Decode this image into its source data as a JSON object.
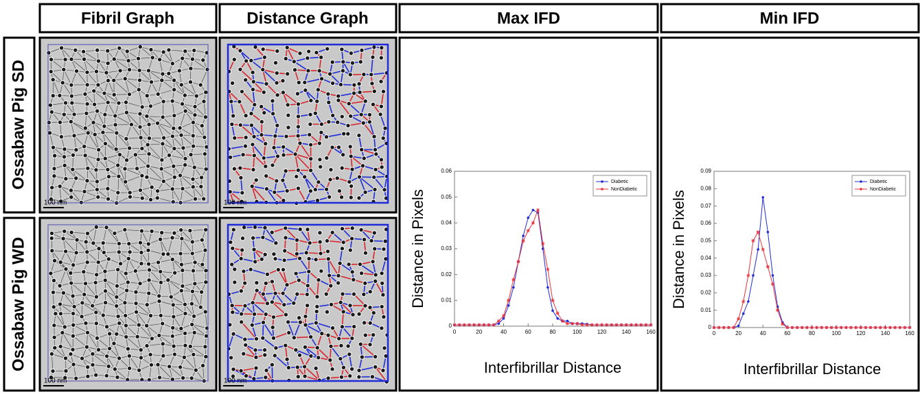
{
  "figure": {
    "column_headers": [
      "Fibril Graph",
      "Distance Graph"
    ],
    "row_labels": [
      "Ossabaw Pig SD",
      "Ossabaw Pig WD"
    ],
    "scale_bar": "100 nm"
  },
  "chart_data": [
    {
      "type": "line",
      "title": "Max IFD",
      "x_label": "Interfibrillar Distance",
      "y_label": "Distance in Pixels",
      "x": [
        0,
        4,
        8,
        12,
        16,
        20,
        24,
        28,
        32,
        36,
        40,
        44,
        48,
        52,
        56,
        60,
        64,
        68,
        72,
        76,
        80,
        84,
        88,
        92,
        96,
        100,
        104,
        108,
        112,
        116,
        120,
        124,
        128,
        132,
        136,
        140,
        144,
        148,
        152,
        156,
        160
      ],
      "series": [
        {
          "name": "Diabetic",
          "color": "#1f2bd6",
          "values": [
            0.0005,
            0.0005,
            0.0005,
            0.0005,
            0.0005,
            0.0005,
            0.0005,
            0.0005,
            0.0005,
            0.001,
            0.003,
            0.008,
            0.015,
            0.025,
            0.035,
            0.042,
            0.045,
            0.044,
            0.03,
            0.015,
            0.006,
            0.003,
            0.002,
            0.002,
            0.001,
            0.001,
            0.001,
            0.0008,
            0.0005,
            0.0005,
            0.0005,
            0.0005,
            0.0005,
            0.0005,
            0.0005,
            0.0005,
            0.0005,
            0.0005,
            0.0005,
            0.0005,
            0.0005
          ]
        },
        {
          "name": "NonDiabetic",
          "color": "#e8323a",
          "values": [
            0.0005,
            0.0005,
            0.0005,
            0.0005,
            0.0005,
            0.0005,
            0.0005,
            0.0005,
            0.0005,
            0.002,
            0.004,
            0.01,
            0.018,
            0.025,
            0.033,
            0.037,
            0.04,
            0.045,
            0.032,
            0.022,
            0.01,
            0.005,
            0.002,
            0.001,
            0.001,
            0.001,
            0.0005,
            0.0005,
            0.0005,
            0.0005,
            0.0005,
            0.0005,
            0.0005,
            0.0005,
            0.0005,
            0.0005,
            0.0005,
            0.0005,
            0.0005,
            0.0005,
            0.0005
          ]
        }
      ],
      "xlim": [
        0,
        160
      ],
      "xticks": [
        0,
        20,
        40,
        60,
        80,
        100,
        120,
        140,
        160
      ],
      "ylim": [
        0,
        0.06
      ],
      "yticks": [
        0,
        0.01,
        0.02,
        0.03,
        0.04,
        0.05,
        0.06
      ],
      "legend": "top-right"
    },
    {
      "type": "line",
      "title": "Min IFD",
      "x_label": "Interfibrillar Distance",
      "y_label": "Distance in Pixels",
      "x": [
        0,
        4,
        8,
        12,
        16,
        20,
        24,
        28,
        32,
        36,
        40,
        44,
        48,
        52,
        56,
        60,
        64,
        68,
        72,
        76,
        80,
        84,
        88,
        92,
        96,
        100,
        104,
        108,
        112,
        116,
        120,
        124,
        128,
        132,
        136,
        140,
        144,
        148,
        152,
        156,
        160
      ],
      "series": [
        {
          "name": "Diabetic",
          "color": "#1f2bd6",
          "values": [
            0,
            0,
            0,
            0,
            0,
            0.001,
            0.008,
            0.015,
            0.03,
            0.045,
            0.075,
            0.055,
            0.03,
            0.012,
            0.003,
            0,
            0,
            0,
            0,
            0,
            0,
            0,
            0,
            0,
            0,
            0,
            0,
            0,
            0,
            0,
            0,
            0,
            0,
            0,
            0,
            0,
            0,
            0,
            0,
            0,
            0
          ]
        },
        {
          "name": "NonDiabetic",
          "color": "#e8323a",
          "values": [
            0,
            0,
            0,
            0,
            0,
            0.005,
            0.015,
            0.03,
            0.05,
            0.055,
            0.045,
            0.035,
            0.025,
            0.01,
            0.002,
            0,
            0,
            0,
            0,
            0,
            0,
            0,
            0,
            0,
            0,
            0,
            0,
            0,
            0,
            0,
            0,
            0,
            0,
            0,
            0,
            0,
            0,
            0,
            0,
            0,
            0
          ]
        }
      ],
      "xlim": [
        0,
        160
      ],
      "xticks": [
        0,
        20,
        40,
        60,
        80,
        100,
        120,
        140,
        160
      ],
      "ylim": [
        0,
        0.09
      ],
      "yticks": [
        0,
        0.01,
        0.02,
        0.03,
        0.04,
        0.05,
        0.06,
        0.07,
        0.08,
        0.09
      ],
      "legend": "top-right"
    }
  ]
}
